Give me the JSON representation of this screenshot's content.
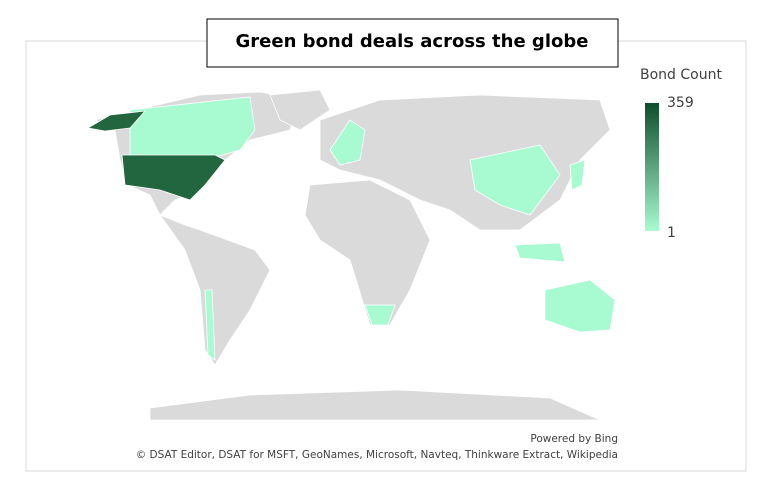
{
  "chart_data": {
    "type": "map",
    "title": "Green bond deals across the globe",
    "legend_title": "Bond Count",
    "scale": {
      "min": 1,
      "max": 359,
      "colors": [
        "#a8fbd0",
        "#0f4d2c"
      ]
    },
    "credits": [
      "Powered by Bing",
      "© DSAT Editor, DSAT for MSFT, GeoNames, Microsoft, Navteq, Thinkware Extract, Wikipedia"
    ]
  }
}
